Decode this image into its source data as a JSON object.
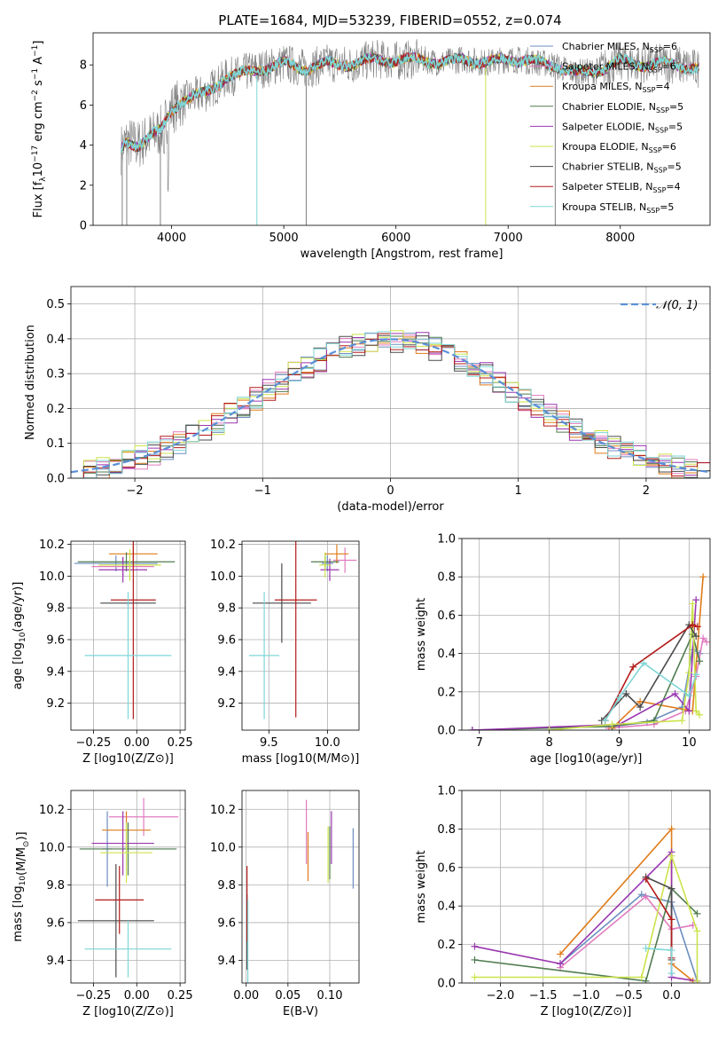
{
  "title": "PLATE=1684, MJD=53239, FIBERID=0552, z=0.074",
  "colors": {
    "chabrier_miles": "#6c8ebf",
    "salpeter_miles": "#e07bbf",
    "kroupa_miles": "#e07b1a",
    "chabrier_elodie": "#4f7b4f",
    "salpeter_elodie": "#9a36b0",
    "kroupa_elodie": "#cde34a",
    "chabrier_stelib": "#4a4a4a",
    "salpeter_stelib": "#b31b1b",
    "kroupa_stelib": "#7fd6d6",
    "data": "#808080",
    "gaussian": "#5b8fd6"
  },
  "chart_data": [
    {
      "id": "spectrum",
      "type": "line",
      "xlabel": "wavelength [Angstrom, rest frame]",
      "ylabel": "Flux [f_λ10^{-17} erg cm^{-2} s^{-1} A^{-1}]",
      "xlim": [
        3300,
        8800
      ],
      "ylim": [
        0,
        9.6
      ],
      "xticks": [
        "4000",
        "5000",
        "6000",
        "7000",
        "8000"
      ],
      "yticks": [
        "0",
        "2",
        "4",
        "6",
        "8"
      ],
      "legend": [
        {
          "label": "Chabrier MILES, N",
          "sub": "SSP",
          "eq": "=6",
          "color": "chabrier_miles"
        },
        {
          "label": "Salpeter MILES, N",
          "sub": "SSP",
          "eq": "=6",
          "color": "salpeter_miles"
        },
        {
          "label": "Kroupa MILES, N",
          "sub": "SSP",
          "eq": "=4",
          "color": "kroupa_miles"
        },
        {
          "label": "Chabrier ELODIE, N",
          "sub": "SSP",
          "eq": "=5",
          "color": "chabrier_elodie"
        },
        {
          "label": "Salpeter ELODIE, N",
          "sub": "SSP",
          "eq": "=5",
          "color": "salpeter_elodie"
        },
        {
          "label": "Kroupa ELODIE, N",
          "sub": "SSP",
          "eq": "=6",
          "color": "kroupa_elodie"
        },
        {
          "label": "Chabrier STELIB, N",
          "sub": "SSP",
          "eq": "=5",
          "color": "chabrier_stelib"
        },
        {
          "label": "Salpeter STELIB, N",
          "sub": "SSP",
          "eq": "=4",
          "color": "salpeter_stelib"
        },
        {
          "label": "Kroupa STELIB, N",
          "sub": "SSP",
          "eq": "=5",
          "color": "kroupa_stelib"
        }
      ],
      "continuum": [
        [
          3550,
          3.8
        ],
        [
          3600,
          4.2
        ],
        [
          3700,
          4.0
        ],
        [
          3800,
          4.4
        ],
        [
          3900,
          4.7
        ],
        [
          4000,
          5.8
        ],
        [
          4100,
          6.2
        ],
        [
          4200,
          6.4
        ],
        [
          4300,
          6.6
        ],
        [
          4400,
          7.0
        ],
        [
          4500,
          7.4
        ],
        [
          4600,
          7.5
        ],
        [
          4700,
          7.7
        ],
        [
          4800,
          7.8
        ],
        [
          4900,
          7.9
        ],
        [
          5000,
          8.1
        ],
        [
          5200,
          7.8
        ],
        [
          5400,
          8.1
        ],
        [
          5600,
          8.0
        ],
        [
          5800,
          8.3
        ],
        [
          6000,
          8.2
        ],
        [
          6200,
          8.3
        ],
        [
          6400,
          8.1
        ],
        [
          6600,
          8.3
        ],
        [
          6800,
          8.1
        ],
        [
          7000,
          8.3
        ],
        [
          7200,
          8.2
        ],
        [
          7400,
          8.0
        ],
        [
          7600,
          7.6
        ],
        [
          7800,
          7.7
        ],
        [
          8000,
          8.2
        ],
        [
          8200,
          8.0
        ],
        [
          8400,
          8.1
        ],
        [
          8600,
          7.9
        ],
        [
          8700,
          7.8
        ]
      ]
    },
    {
      "id": "residuals",
      "type": "histogram",
      "xlabel": "(data-model)/error",
      "ylabel": "Normed distribution",
      "xlim": [
        -2.5,
        2.5
      ],
      "ylim": [
        0,
        0.55
      ],
      "xticks": [
        "−2",
        "−1",
        "0",
        "1",
        "2"
      ],
      "yticks": [
        "0.0",
        "0.1",
        "0.2",
        "0.3",
        "0.4",
        "0.5"
      ],
      "legend": "𝒩(0, 1)",
      "bin_width": 0.1
    },
    {
      "id": "age-vs-Z",
      "type": "errorbar",
      "xlabel": "Z [log10(Z/Z⊙)]",
      "ylabel": "age  [log10(age/yr)]",
      "xlim": [
        -0.38,
        0.28
      ],
      "ylim": [
        9.03,
        10.22
      ],
      "xticks": [
        "−0.25",
        "0.00",
        "0.25"
      ],
      "yticks": [
        "9.2",
        "9.4",
        "9.6",
        "9.8",
        "10.0",
        "10.2"
      ],
      "points": [
        {
          "c": "chabrier_miles",
          "x": -0.12,
          "xerr": 0.24,
          "y": 10.08,
          "yerr": 0.05
        },
        {
          "c": "salpeter_miles",
          "x": -0.08,
          "xerr": 0.18,
          "y": 10.06,
          "yerr": 0.06
        },
        {
          "c": "kroupa_miles",
          "x": -0.02,
          "xerr": 0.14,
          "y": 10.14,
          "yerr": 0.06
        },
        {
          "c": "chabrier_elodie",
          "x": -0.06,
          "xerr": 0.28,
          "y": 10.09,
          "yerr": 0.06
        },
        {
          "c": "salpeter_elodie",
          "x": -0.08,
          "xerr": 0.14,
          "y": 10.04,
          "yerr": 0.08
        },
        {
          "c": "kroupa_elodie",
          "x": -0.04,
          "xerr": 0.18,
          "y": 10.07,
          "yerr": 0.1
        },
        {
          "c": "chabrier_stelib",
          "x": -0.05,
          "xerr": 0.16,
          "y": 9.83,
          "yerr": 0.02
        },
        {
          "c": "salpeter_stelib",
          "x": -0.02,
          "xerr": 0.13,
          "y": 9.85,
          "yerr": 0.75
        },
        {
          "c": "kroupa_stelib",
          "x": -0.05,
          "xerr": 0.25,
          "y": 9.5,
          "yerr": 0.4
        }
      ]
    },
    {
      "id": "age-vs-mass",
      "type": "errorbar",
      "xlabel": "mass [log10(M/M⊙)]",
      "ylabel": "",
      "xlim": [
        9.27,
        10.27
      ],
      "ylim": [
        9.03,
        10.22
      ],
      "xticks": [
        "9.5",
        "10.0"
      ],
      "yticks": [
        "9.2",
        "9.4",
        "9.6",
        "9.8",
        "10.0",
        "10.2"
      ],
      "points": [
        {
          "c": "chabrier_miles",
          "x": 10.0,
          "xerr": 0.05,
          "y": 10.08,
          "yerr": 0.05
        },
        {
          "c": "salpeter_miles",
          "x": 10.15,
          "xerr": 0.1,
          "y": 10.1,
          "yerr": 0.08
        },
        {
          "c": "kroupa_miles",
          "x": 10.08,
          "xerr": 0.1,
          "y": 10.14,
          "yerr": 0.06
        },
        {
          "c": "chabrier_elodie",
          "x": 9.98,
          "xerr": 0.12,
          "y": 10.09,
          "yerr": 0.05
        },
        {
          "c": "salpeter_elodie",
          "x": 10.02,
          "xerr": 0.08,
          "y": 10.04,
          "yerr": 0.07
        },
        {
          "c": "kroupa_elodie",
          "x": 9.98,
          "xerr": 0.05,
          "y": 10.07,
          "yerr": 0.08
        },
        {
          "c": "chabrier_stelib",
          "x": 9.61,
          "xerr": 0.25,
          "y": 9.83,
          "yerr": 0.25
        },
        {
          "c": "salpeter_stelib",
          "x": 9.73,
          "xerr": 0.18,
          "y": 9.85,
          "yerr": 0.74
        },
        {
          "c": "kroupa_stelib",
          "x": 9.46,
          "xerr": 0.13,
          "y": 9.5,
          "yerr": 0.4
        }
      ]
    },
    {
      "id": "weight-vs-age",
      "type": "line",
      "xlabel": "age  [log10(age/yr)]",
      "ylabel": "mass weight",
      "xlim": [
        6.75,
        10.3
      ],
      "ylim": [
        0,
        1
      ],
      "xticks": [
        "7",
        "8",
        "9",
        "10"
      ],
      "yticks": [
        "0.0",
        "0.2",
        "0.4",
        "0.6",
        "0.8",
        "1.0"
      ],
      "series": [
        {
          "c": "chabrier_miles",
          "x": [
            8.9,
            9.4,
            9.9,
            10.05,
            10.15
          ],
          "y": [
            0.02,
            0.04,
            0.12,
            0.42,
            0.4
          ]
        },
        {
          "c": "salpeter_miles",
          "x": [
            8.85,
            9.5,
            9.95,
            10.1,
            10.2,
            10.25
          ],
          "y": [
            0.01,
            0.03,
            0.1,
            0.28,
            0.48,
            0.46
          ]
        },
        {
          "c": "kroupa_miles",
          "x": [
            8.9,
            9.3,
            10.05,
            10.2
          ],
          "y": [
            0.01,
            0.15,
            0.1,
            0.8
          ]
        },
        {
          "c": "chabrier_elodie",
          "x": [
            6.9,
            8.9,
            9.5,
            10.05,
            10.15
          ],
          "y": [
            0.0,
            0.02,
            0.05,
            0.5,
            0.36
          ]
        },
        {
          "c": "salpeter_elodie",
          "x": [
            6.9,
            9.0,
            9.8,
            10.0,
            10.1
          ],
          "y": [
            0.0,
            0.03,
            0.19,
            0.1,
            0.68
          ]
        },
        {
          "c": "kroupa_elodie",
          "x": [
            8.0,
            8.9,
            9.9,
            10.0,
            10.05,
            10.1,
            10.15
          ],
          "y": [
            0.0,
            0.03,
            0.05,
            0.3,
            0.66,
            0.1,
            0.08
          ]
        },
        {
          "c": "chabrier_stelib",
          "x": [
            8.75,
            9.1,
            9.3,
            10.0,
            10.1
          ],
          "y": [
            0.05,
            0.19,
            0.12,
            0.55,
            0.49
          ]
        },
        {
          "c": "salpeter_stelib",
          "x": [
            8.8,
            9.2,
            10.05,
            10.12
          ],
          "y": [
            0.05,
            0.33,
            0.55,
            0.54
          ]
        },
        {
          "c": "kroupa_stelib",
          "x": [
            8.8,
            9.0,
            9.35,
            10.0,
            10.1
          ],
          "y": [
            0.05,
            0.17,
            0.35,
            0.18,
            0.29
          ]
        }
      ]
    },
    {
      "id": "mass-vs-Z",
      "type": "errorbar",
      "xlabel": "Z [log10(Z/Z⊙)]",
      "ylabel": "mass [log10(M/M⊙)]",
      "xlim": [
        -0.38,
        0.28
      ],
      "ylim": [
        9.28,
        10.3
      ],
      "xticks": [
        "−0.25",
        "0.00",
        "0.25"
      ],
      "yticks": [
        "9.4",
        "9.6",
        "9.8",
        "10.0",
        "10.2"
      ],
      "points": [
        {
          "c": "chabrier_miles",
          "x": -0.17,
          "xerr": 0.03,
          "y": 9.99,
          "yerr": 0.2
        },
        {
          "c": "salpeter_miles",
          "x": 0.04,
          "xerr": 0.2,
          "y": 10.16,
          "yerr": 0.1
        },
        {
          "c": "kroupa_miles",
          "x": -0.06,
          "xerr": 0.14,
          "y": 10.09,
          "yerr": 0.1
        },
        {
          "c": "chabrier_elodie",
          "x": -0.05,
          "xerr": 0.28,
          "y": 9.99,
          "yerr": 0.14
        },
        {
          "c": "salpeter_elodie",
          "x": -0.08,
          "xerr": 0.18,
          "y": 10.02,
          "yerr": 0.17
        },
        {
          "c": "kroupa_elodie",
          "x": -0.06,
          "xerr": 0.15,
          "y": 9.97,
          "yerr": 0.16
        },
        {
          "c": "chabrier_stelib",
          "x": -0.12,
          "xerr": 0.22,
          "y": 9.61,
          "yerr": 0.3
        },
        {
          "c": "salpeter_stelib",
          "x": -0.1,
          "xerr": 0.14,
          "y": 9.72,
          "yerr": 0.18
        },
        {
          "c": "kroupa_stelib",
          "x": -0.05,
          "xerr": 0.25,
          "y": 9.46,
          "yerr": 0.15
        }
      ]
    },
    {
      "id": "mass-vs-ebv",
      "type": "errorbar",
      "xlabel": "E(B-V)",
      "ylabel": "",
      "xlim": [
        -0.005,
        0.135
      ],
      "ylim": [
        9.28,
        10.3
      ],
      "xticks": [
        "0.00",
        "0.05",
        "0.10"
      ],
      "yticks": [
        "9.4",
        "9.6",
        "9.8",
        "10.0",
        "10.2"
      ],
      "points": [
        {
          "c": "chabrier_miles",
          "x": 0.128,
          "y": 9.94,
          "yerr": 0.16
        },
        {
          "c": "salpeter_miles",
          "x": 0.072,
          "y": 10.08,
          "yerr": 0.17
        },
        {
          "c": "kroupa_miles",
          "x": 0.074,
          "y": 9.95,
          "yerr": 0.13
        },
        {
          "c": "chabrier_elodie",
          "x": 0.1,
          "y": 9.97,
          "yerr": 0.14
        },
        {
          "c": "salpeter_elodie",
          "x": 0.102,
          "y": 10.05,
          "yerr": 0.14
        },
        {
          "c": "kroupa_elodie",
          "x": 0.098,
          "y": 9.96,
          "yerr": 0.15
        },
        {
          "c": "chabrier_stelib",
          "x": 0.001,
          "y": 9.55,
          "yerr": 0.2
        },
        {
          "c": "salpeter_stelib",
          "x": 0.001,
          "y": 9.7,
          "yerr": 0.2
        },
        {
          "c": "kroupa_stelib",
          "x": 0.002,
          "y": 9.5,
          "yerr": 0.22
        }
      ]
    },
    {
      "id": "weight-vs-Z",
      "type": "line",
      "xlabel": "Z [log10(Z/Z⊙)]",
      "ylabel": "mass weight",
      "xlim": [
        -2.45,
        0.45
      ],
      "ylim": [
        0,
        1
      ],
      "xticks": [
        "−2.0",
        "−1.5",
        "−1.0",
        "−0.5",
        "0.0"
      ],
      "yticks": [
        "0.0",
        "0.2",
        "0.4",
        "0.6",
        "0.8",
        "1.0"
      ],
      "series": [
        {
          "c": "chabrier_miles",
          "x": [
            -1.3,
            -0.35,
            0.0,
            0.3
          ],
          "y": [
            0.1,
            0.46,
            0.42,
            0.01
          ]
        },
        {
          "c": "salpeter_miles",
          "x": [
            -1.3,
            -0.3,
            0.0,
            0.25
          ],
          "y": [
            0.08,
            0.45,
            0.28,
            0.3
          ]
        },
        {
          "c": "kroupa_miles",
          "x": [
            -1.3,
            0.0,
            0.0,
            0.25
          ],
          "y": [
            0.15,
            0.8,
            0.1,
            0.01
          ]
        },
        {
          "c": "chabrier_elodie",
          "x": [
            -2.3,
            -0.3,
            0.0,
            0.3
          ],
          "y": [
            0.12,
            0.01,
            0.49,
            0.36
          ]
        },
        {
          "c": "salpeter_elodie",
          "x": [
            -2.3,
            -1.3,
            0.0,
            0.0,
            0.3
          ],
          "y": [
            0.19,
            0.1,
            0.68,
            0.03,
            0.01
          ]
        },
        {
          "c": "kroupa_elodie",
          "x": [
            -2.3,
            -0.35,
            0.0,
            0.3,
            0.3
          ],
          "y": [
            0.03,
            0.03,
            0.66,
            0.27,
            0.01
          ]
        },
        {
          "c": "chabrier_stelib",
          "x": [
            -0.3,
            0.0,
            0.0
          ],
          "y": [
            0.55,
            0.49,
            0.12
          ]
        },
        {
          "c": "salpeter_stelib",
          "x": [
            -0.3,
            0.0,
            0.0
          ],
          "y": [
            0.54,
            0.33,
            0.13
          ]
        },
        {
          "c": "kroupa_stelib",
          "x": [
            -0.3,
            0.0,
            0.0
          ],
          "y": [
            0.18,
            0.17,
            0.05
          ]
        }
      ]
    }
  ]
}
